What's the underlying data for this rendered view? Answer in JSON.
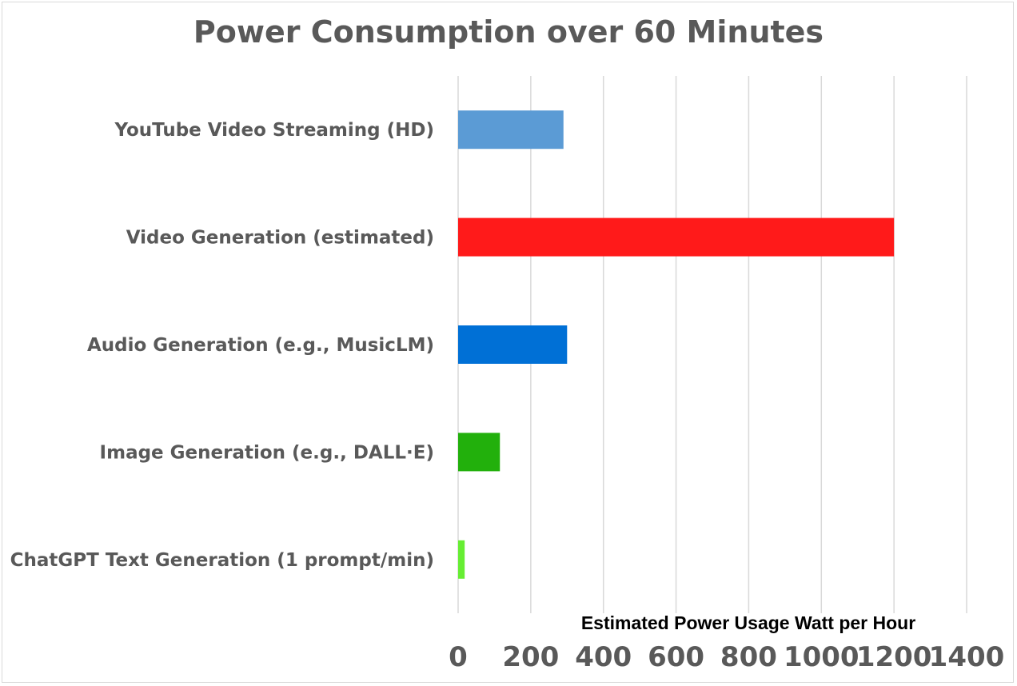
{
  "chart_data": {
    "type": "bar",
    "orientation": "horizontal",
    "title": "Power Consumption over 60 Minutes",
    "xlabel": "Estimated Power Usage Watt per Hour",
    "ylabel": "",
    "categories": [
      "YouTube Video Streaming (HD)",
      "Video Generation (estimated)",
      "Audio Generation (e.g., MusicLM)",
      "Image Generation (e.g., DALL·E)",
      "ChatGPT Text Generation (1 prompt/min)"
    ],
    "values": [
      290,
      1200,
      300,
      115,
      18
    ],
    "colors": [
      "#5b9bd5",
      "#ff1a1a",
      "#0070d6",
      "#22b00c",
      "#66ee33"
    ],
    "xlim": [
      0,
      1400
    ],
    "ticks": [
      "0",
      "200",
      "400",
      "600",
      "800",
      "1000",
      "1200",
      "1400"
    ],
    "grid": "vertical",
    "gridline_color": "#d9d9d9"
  }
}
